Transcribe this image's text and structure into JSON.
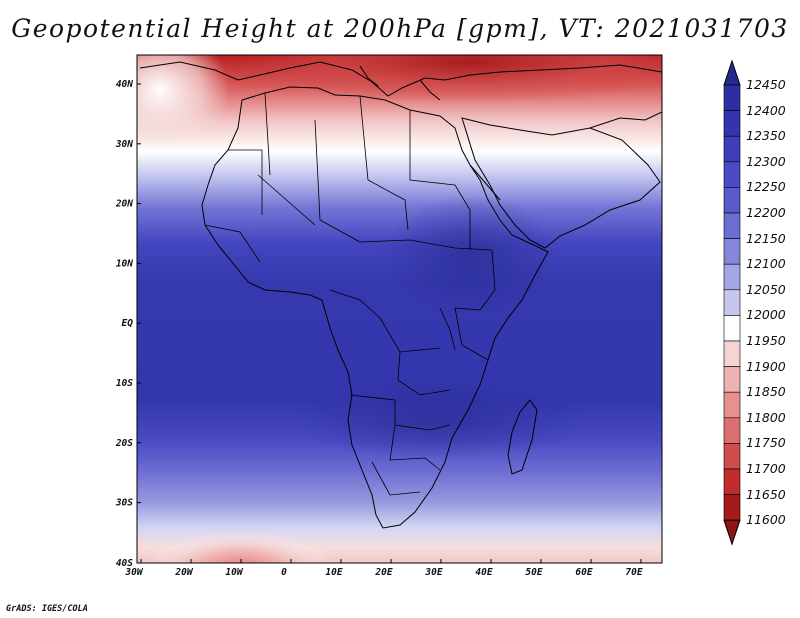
{
  "title": "Geopotential Height at 200hPa [gpm], VT: 2021031703",
  "footer": "GrADS: IGES/COLA",
  "map": {
    "lon_range": [
      -30,
      75
    ],
    "lat_range": [
      -40,
      45
    ],
    "x_ticks": [
      "30W",
      "20W",
      "10W",
      "0",
      "10E",
      "20E",
      "30E",
      "40E",
      "50E",
      "60E",
      "70E"
    ],
    "y_ticks": [
      "40N",
      "30N",
      "20N",
      "10N",
      "EQ",
      "10S",
      "20S",
      "30S",
      "40S"
    ]
  },
  "colorbar": {
    "levels": [
      "12450",
      "12400",
      "12350",
      "12300",
      "12250",
      "12200",
      "12150",
      "12100",
      "12050",
      "12000",
      "11950",
      "11900",
      "11850",
      "11800",
      "11750",
      "11700",
      "11650",
      "11600"
    ],
    "colors": [
      "#262a8f",
      "#2c2fa3",
      "#3335ad",
      "#3c3ebb",
      "#4a4bc4",
      "#5a5bcb",
      "#6d6ed2",
      "#8587da",
      "#a3a6e4",
      "#c5c7ef",
      "#ffffff",
      "#f7d4d4",
      "#efb2b2",
      "#e69090",
      "#dc6f6f",
      "#d04c4c",
      "#c02c2c",
      "#a51a1a",
      "#8f1414"
    ]
  }
}
